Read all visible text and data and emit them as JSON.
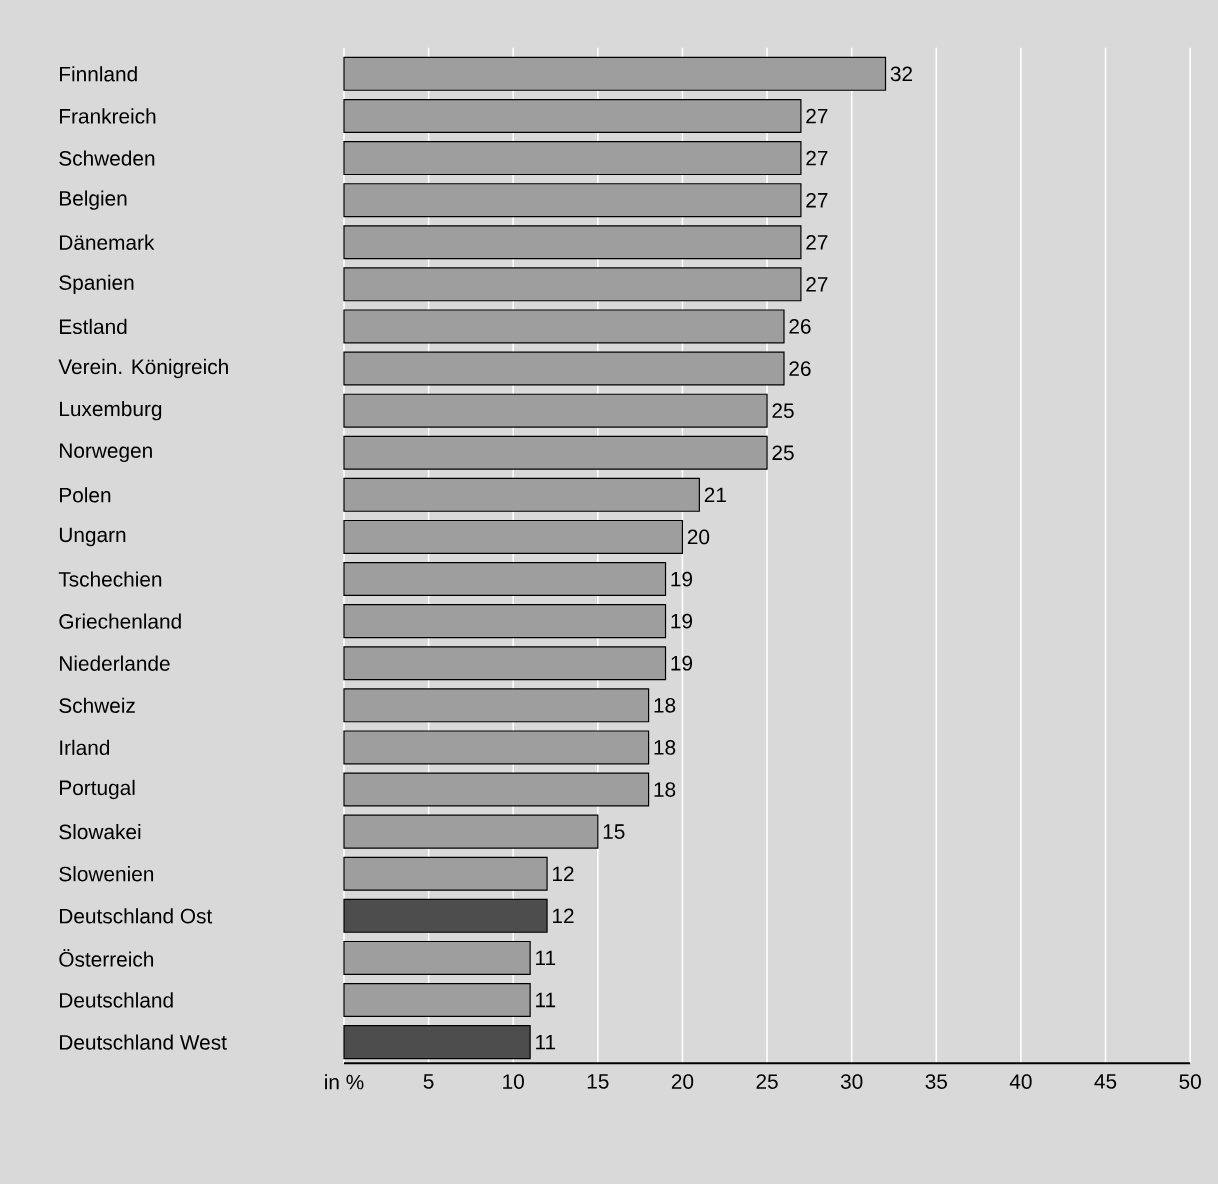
{
  "chart_data": {
    "type": "bar",
    "orientation": "horizontal",
    "categories": [
      "Finnland",
      "Frankreich",
      "Schweden",
      "Belgien",
      "Dänemark",
      "Spanien",
      "Estland",
      "Verein. Königreich",
      "Luxemburg",
      "Norwegen",
      "Polen",
      "Ungarn",
      "Tschechien",
      "Griechenland",
      "Niederlande",
      "Schweiz",
      "Irland",
      "Portugal",
      "Slowakei",
      "Slowenien",
      "Deutschland Ost",
      "Österreich",
      "Deutschland",
      "Deutschland West"
    ],
    "values": [
      32,
      27,
      27,
      27,
      27,
      27,
      26,
      26,
      25,
      25,
      21,
      20,
      19,
      19,
      19,
      18,
      18,
      18,
      15,
      12,
      12,
      11,
      11,
      11
    ],
    "colors": [
      "#9e9e9e",
      "#9e9e9e",
      "#9e9e9e",
      "#9e9e9e",
      "#9e9e9e",
      "#9e9e9e",
      "#9e9e9e",
      "#9e9e9e",
      "#9e9e9e",
      "#9e9e9e",
      "#9e9e9e",
      "#9e9e9e",
      "#9e9e9e",
      "#9e9e9e",
      "#9e9e9e",
      "#9e9e9e",
      "#9e9e9e",
      "#9e9e9e",
      "#9e9e9e",
      "#9e9e9e",
      "#4d4d4d",
      "#9e9e9e",
      "#9e9e9e",
      "#4d4d4d"
    ],
    "xlim": [
      0,
      50
    ],
    "xticks": [
      {
        "value": 0,
        "label": "in %"
      },
      5,
      10,
      15,
      20,
      25,
      30,
      35,
      40,
      45,
      50
    ],
    "grid": "x",
    "data_labels": true
  }
}
